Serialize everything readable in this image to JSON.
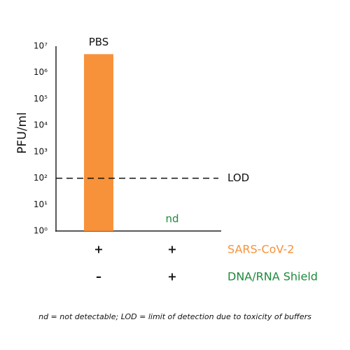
{
  "chart_data": {
    "type": "bar",
    "y_label": "PFU/ml",
    "categories": [
      "PBS",
      null
    ],
    "values": [
      5000000,
      null
    ],
    "value_labels": [
      null,
      "nd"
    ],
    "color": "#f7923a",
    "value_label_color": "#1e8a3c",
    "log_scale": true,
    "grid": false,
    "ylim": [
      1,
      10000000
    ],
    "yticks": [
      {
        "value": 1,
        "label": "10⁰"
      },
      {
        "value": 10,
        "label": "10¹"
      },
      {
        "value": 100,
        "label": "10²"
      },
      {
        "value": 1000,
        "label": "10³"
      },
      {
        "value": 10000,
        "label": "10⁴"
      },
      {
        "value": 100000,
        "label": "10⁵"
      },
      {
        "value": 1000000,
        "label": "10⁶"
      },
      {
        "value": 10000000,
        "label": "10⁷"
      }
    ],
    "reference_lines": [
      {
        "value": 100,
        "label": "LOD",
        "style": "dashed"
      }
    ],
    "conditions": [
      {
        "name": "SARS-CoV-2",
        "color": "#f7923a",
        "marks": [
          "+",
          "+"
        ]
      },
      {
        "name": "DNA/RNA Shield",
        "color": "#1e8a3c",
        "marks": [
          "–",
          "+"
        ]
      }
    ],
    "footnote": "nd = not detectable; LOD = limit of detection due to toxicity of buffers"
  }
}
